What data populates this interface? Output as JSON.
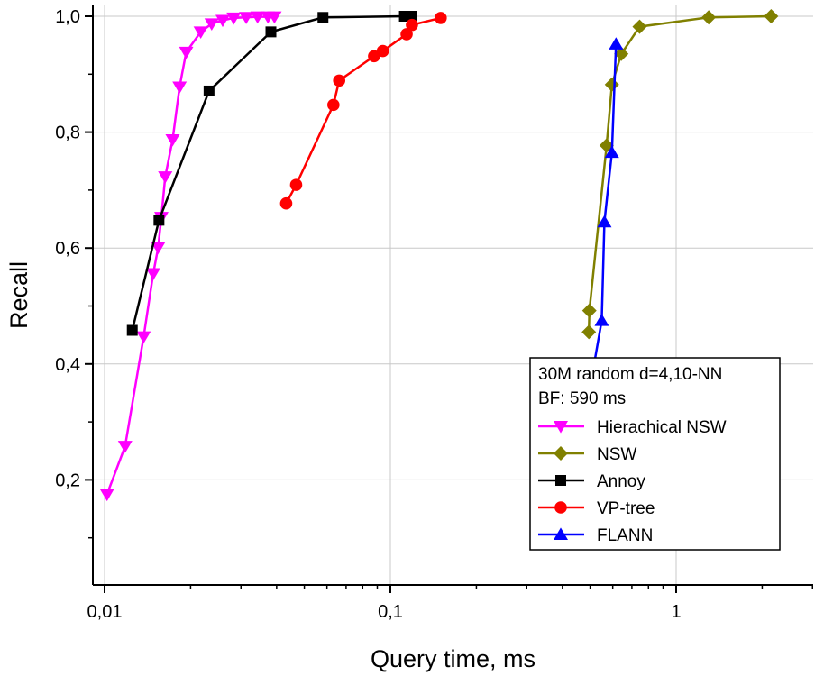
{
  "chart_data": {
    "type": "line",
    "xlabel": "Query time, ms",
    "ylabel": "Recall",
    "xscale": "log",
    "xlim": [
      0.0095,
      3.0
    ],
    "ylim": [
      0.08,
      1.0
    ],
    "grid": true,
    "legend_position": "bottom-right",
    "x_ticks": [
      {
        "value": 0.01,
        "label": "0,01"
      },
      {
        "value": 0.1,
        "label": "0,1"
      },
      {
        "value": 1,
        "label": "1"
      }
    ],
    "y_ticks": [
      {
        "value": 0.2,
        "label": "0,2"
      },
      {
        "value": 0.4,
        "label": "0,4"
      },
      {
        "value": 0.6,
        "label": "0,6"
      },
      {
        "value": 0.8,
        "label": "0,8"
      },
      {
        "value": 1.0,
        "label": "1,0"
      }
    ],
    "legend_title_lines": [
      "30M random d=4,10-NN",
      "BF: 590 ms"
    ],
    "series": [
      {
        "name": "Hierachical NSW",
        "color": "#ff00ff",
        "marker": "triangle-down",
        "points": [
          [
            0.0102,
            0.175
          ],
          [
            0.0118,
            0.258
          ],
          [
            0.0137,
            0.447
          ],
          [
            0.0148,
            0.556
          ],
          [
            0.0154,
            0.601
          ],
          [
            0.0158,
            0.653
          ],
          [
            0.0163,
            0.723
          ],
          [
            0.0173,
            0.787
          ],
          [
            0.0183,
            0.878
          ],
          [
            0.0193,
            0.938
          ],
          [
            0.0217,
            0.973
          ],
          [
            0.0237,
            0.987
          ],
          [
            0.0259,
            0.993
          ],
          [
            0.0283,
            0.997
          ],
          [
            0.0313,
            0.998
          ],
          [
            0.0343,
            0.999
          ],
          [
            0.0373,
            0.999
          ],
          [
            0.0393,
            0.999
          ]
        ]
      },
      {
        "name": "NSW",
        "color": "#808000",
        "marker": "diamond",
        "points": [
          [
            0.495,
            0.455
          ],
          [
            0.497,
            0.492
          ],
          [
            0.571,
            0.777
          ],
          [
            0.596,
            0.882
          ],
          [
            0.643,
            0.935
          ],
          [
            0.745,
            0.982
          ],
          [
            1.3,
            0.998
          ],
          [
            2.15,
            1.0
          ]
        ]
      },
      {
        "name": "Annoy",
        "color": "#000000",
        "marker": "square",
        "points": [
          [
            0.0125,
            0.458
          ],
          [
            0.0155,
            0.648
          ],
          [
            0.0232,
            0.871
          ],
          [
            0.0382,
            0.973
          ],
          [
            0.0581,
            0.998
          ],
          [
            0.112,
            1.0
          ],
          [
            0.119,
            1.0
          ]
        ]
      },
      {
        "name": "VP-tree",
        "color": "#ff0000",
        "marker": "circle",
        "points": [
          [
            0.0432,
            0.677
          ],
          [
            0.0468,
            0.709
          ],
          [
            0.0632,
            0.847
          ],
          [
            0.0662,
            0.889
          ],
          [
            0.0877,
            0.931
          ],
          [
            0.0941,
            0.94
          ],
          [
            0.114,
            0.969
          ],
          [
            0.119,
            0.985
          ],
          [
            0.15,
            0.997
          ]
        ]
      },
      {
        "name": "FLANN",
        "color": "#0000ff",
        "marker": "triangle-up",
        "points": [
          [
            0.508,
            0.38
          ],
          [
            0.549,
            0.475
          ],
          [
            0.561,
            0.645
          ],
          [
            0.596,
            0.765
          ],
          [
            0.616,
            0.952
          ]
        ]
      }
    ]
  }
}
